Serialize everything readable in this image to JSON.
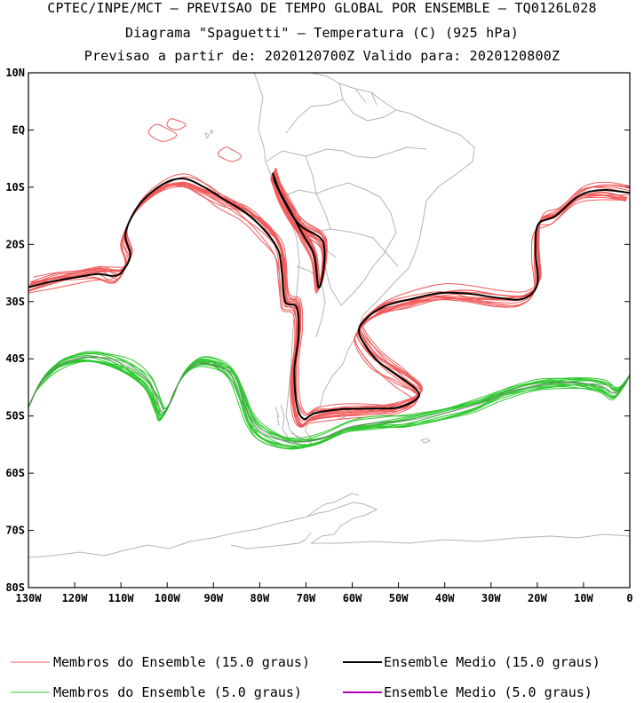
{
  "header": {
    "line1": "CPTEC/INPE/MCT – PREVISAO DE TEMPO GLOBAL POR ENSEMBLE – TQ0126L028",
    "line2": "Diagrama \"Spaguetti\" – Temperatura (C) (925 hPa)",
    "line3": "Previsao a partir de: 2020120700Z  Valido para: 2020120800Z"
  },
  "chart_data": {
    "type": "line",
    "title": "Diagrama \"Spaguetti\" – Temperatura (C) (925 hPa)",
    "xlim": [
      -130,
      0
    ],
    "ylim": [
      -80,
      10
    ],
    "x_ticks": [
      {
        "value": -130,
        "label": "130W"
      },
      {
        "value": -120,
        "label": "120W"
      },
      {
        "value": -110,
        "label": "110W"
      },
      {
        "value": -100,
        "label": "100W"
      },
      {
        "value": -90,
        "label": "90W"
      },
      {
        "value": -80,
        "label": "80W"
      },
      {
        "value": -70,
        "label": "70W"
      },
      {
        "value": -60,
        "label": "60W"
      },
      {
        "value": -50,
        "label": "50W"
      },
      {
        "value": -40,
        "label": "40W"
      },
      {
        "value": -30,
        "label": "30W"
      },
      {
        "value": -20,
        "label": "20W"
      },
      {
        "value": -10,
        "label": "10W"
      },
      {
        "value": 0,
        "label": "0"
      }
    ],
    "y_ticks": [
      {
        "value": 10,
        "label": "10N"
      },
      {
        "value": 0,
        "label": "EQ"
      },
      {
        "value": -10,
        "label": "10S"
      },
      {
        "value": -20,
        "label": "20S"
      },
      {
        "value": -30,
        "label": "30S"
      },
      {
        "value": -40,
        "label": "40S"
      },
      {
        "value": -50,
        "label": "50S"
      },
      {
        "value": -60,
        "label": "60S"
      },
      {
        "value": -70,
        "label": "70S"
      },
      {
        "value": -80,
        "label": "80S"
      }
    ],
    "colors": {
      "members15": "#f05a5a",
      "mean15": "#000000",
      "members5": "#2ec82e",
      "mean5": "#b400b4",
      "coast": "#b4b4b4"
    },
    "isotherm_15_mean": [
      [
        -130,
        -27.5
      ],
      [
        -125,
        -26.5
      ],
      [
        -120,
        -25.8
      ],
      [
        -115,
        -25.2
      ],
      [
        -112,
        -25.5
      ],
      [
        -110,
        -25
      ],
      [
        -108,
        -22
      ],
      [
        -109,
        -18
      ],
      [
        -106,
        -13
      ],
      [
        -101,
        -9.5
      ],
      [
        -96.5,
        -8.5
      ],
      [
        -92,
        -10
      ],
      [
        -88,
        -12
      ],
      [
        -83,
        -14.5
      ],
      [
        -79,
        -17.5
      ],
      [
        -76,
        -21
      ],
      [
        -75.2,
        -25
      ],
      [
        -74.5,
        -30
      ],
      [
        -72,
        -31
      ],
      [
        -71.6,
        -36
      ],
      [
        -72.5,
        -42
      ],
      [
        -72,
        -48
      ],
      [
        -70.5,
        -50.5
      ],
      [
        -68,
        -49.5
      ],
      [
        -62,
        -48.8
      ],
      [
        -55,
        -48.7
      ],
      [
        -50,
        -48.5
      ],
      [
        -46,
        -47
      ],
      [
        -46,
        -45.5
      ],
      [
        -50,
        -43
      ],
      [
        -55,
        -40
      ],
      [
        -58.5,
        -35.5
      ],
      [
        -57,
        -33
      ],
      [
        -53,
        -30.8
      ],
      [
        -47,
        -29.5
      ],
      [
        -41,
        -28.5
      ],
      [
        -35,
        -28.6
      ],
      [
        -28,
        -29.4
      ],
      [
        -23,
        -29.5
      ],
      [
        -20,
        -27
      ],
      [
        -20.4,
        -21
      ],
      [
        -19.8,
        -16.5
      ],
      [
        -16,
        -15
      ],
      [
        -11,
        -11.5
      ],
      [
        -6,
        -10.5
      ],
      [
        0,
        -11
      ]
    ],
    "isotherm_15_mean_interior": [
      [
        -77,
        -8
      ],
      [
        -75,
        -12
      ],
      [
        -71.5,
        -16.5
      ],
      [
        -67,
        -18.8
      ],
      [
        -66,
        -21
      ],
      [
        -66.3,
        -25
      ],
      [
        -67.3,
        -27.5
      ],
      [
        -68.2,
        -22
      ],
      [
        -70.5,
        -18.5
      ],
      [
        -73.5,
        -14
      ],
      [
        -76.5,
        -9.5
      ],
      [
        -77,
        -8
      ]
    ],
    "isotherm_5_mean": [
      [
        -130,
        -48.5
      ],
      [
        -128,
        -45
      ],
      [
        -126,
        -43
      ],
      [
        -123,
        -41
      ],
      [
        -118,
        -39.7
      ],
      [
        -113,
        -40
      ],
      [
        -108,
        -41.5
      ],
      [
        -104,
        -44
      ],
      [
        -102,
        -47.5
      ],
      [
        -101,
        -49.5
      ],
      [
        -99.5,
        -48
      ],
      [
        -98,
        -45
      ],
      [
        -96,
        -42.3
      ],
      [
        -93,
        -40.8
      ],
      [
        -89,
        -41.3
      ],
      [
        -86,
        -43
      ],
      [
        -84,
        -46.5
      ],
      [
        -82,
        -50.5
      ],
      [
        -79,
        -53
      ],
      [
        -73,
        -54.6
      ],
      [
        -67,
        -54
      ],
      [
        -61,
        -52
      ],
      [
        -55,
        -51.3
      ],
      [
        -48,
        -50.8
      ],
      [
        -40,
        -49.5
      ],
      [
        -33,
        -48
      ],
      [
        -27,
        -46
      ],
      [
        -20,
        -44.6
      ],
      [
        -12,
        -44.2
      ],
      [
        -6,
        -44.8
      ],
      [
        -3,
        -46
      ],
      [
        0,
        -43
      ]
    ]
  },
  "legend": {
    "members15_label": "Membros do Ensemble (15.0 graus)",
    "mean15_label": "Ensemble Medio (15.0 graus)",
    "members5_label": "Membros do Ensemble (5.0 graus)",
    "mean5_label": "Ensemble Medio (5.0 graus)"
  }
}
